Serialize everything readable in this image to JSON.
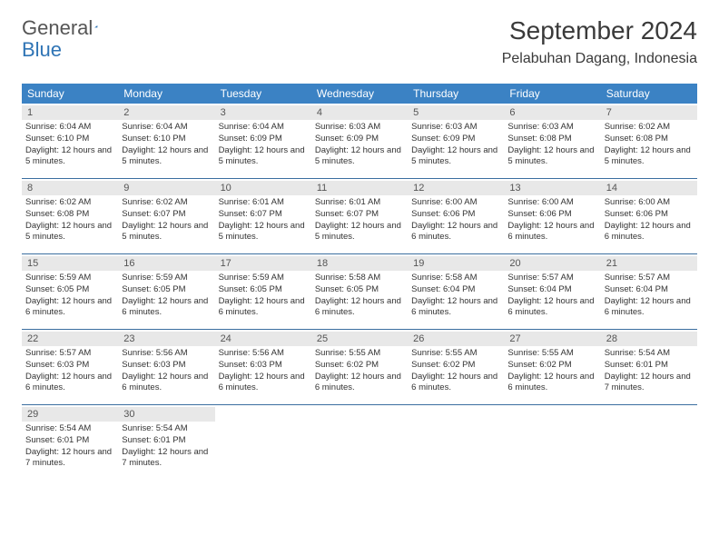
{
  "logo": {
    "part1": "General",
    "part2": "Blue"
  },
  "title": "September 2024",
  "location": "Pelabuhan Dagang, Indonesia",
  "colors": {
    "header_bg": "#3b82c4",
    "header_text": "#ffffff",
    "daynum_bg": "#e8e8e8",
    "week_border": "#3b6ea0",
    "logo_blue": "#2f74b5"
  },
  "day_names": [
    "Sunday",
    "Monday",
    "Tuesday",
    "Wednesday",
    "Thursday",
    "Friday",
    "Saturday"
  ],
  "weeks": [
    [
      {
        "n": "1",
        "sr": "6:04 AM",
        "ss": "6:10 PM",
        "dl": "12 hours and 5 minutes."
      },
      {
        "n": "2",
        "sr": "6:04 AM",
        "ss": "6:10 PM",
        "dl": "12 hours and 5 minutes."
      },
      {
        "n": "3",
        "sr": "6:04 AM",
        "ss": "6:09 PM",
        "dl": "12 hours and 5 minutes."
      },
      {
        "n": "4",
        "sr": "6:03 AM",
        "ss": "6:09 PM",
        "dl": "12 hours and 5 minutes."
      },
      {
        "n": "5",
        "sr": "6:03 AM",
        "ss": "6:09 PM",
        "dl": "12 hours and 5 minutes."
      },
      {
        "n": "6",
        "sr": "6:03 AM",
        "ss": "6:08 PM",
        "dl": "12 hours and 5 minutes."
      },
      {
        "n": "7",
        "sr": "6:02 AM",
        "ss": "6:08 PM",
        "dl": "12 hours and 5 minutes."
      }
    ],
    [
      {
        "n": "8",
        "sr": "6:02 AM",
        "ss": "6:08 PM",
        "dl": "12 hours and 5 minutes."
      },
      {
        "n": "9",
        "sr": "6:02 AM",
        "ss": "6:07 PM",
        "dl": "12 hours and 5 minutes."
      },
      {
        "n": "10",
        "sr": "6:01 AM",
        "ss": "6:07 PM",
        "dl": "12 hours and 5 minutes."
      },
      {
        "n": "11",
        "sr": "6:01 AM",
        "ss": "6:07 PM",
        "dl": "12 hours and 5 minutes."
      },
      {
        "n": "12",
        "sr": "6:00 AM",
        "ss": "6:06 PM",
        "dl": "12 hours and 6 minutes."
      },
      {
        "n": "13",
        "sr": "6:00 AM",
        "ss": "6:06 PM",
        "dl": "12 hours and 6 minutes."
      },
      {
        "n": "14",
        "sr": "6:00 AM",
        "ss": "6:06 PM",
        "dl": "12 hours and 6 minutes."
      }
    ],
    [
      {
        "n": "15",
        "sr": "5:59 AM",
        "ss": "6:05 PM",
        "dl": "12 hours and 6 minutes."
      },
      {
        "n": "16",
        "sr": "5:59 AM",
        "ss": "6:05 PM",
        "dl": "12 hours and 6 minutes."
      },
      {
        "n": "17",
        "sr": "5:59 AM",
        "ss": "6:05 PM",
        "dl": "12 hours and 6 minutes."
      },
      {
        "n": "18",
        "sr": "5:58 AM",
        "ss": "6:05 PM",
        "dl": "12 hours and 6 minutes."
      },
      {
        "n": "19",
        "sr": "5:58 AM",
        "ss": "6:04 PM",
        "dl": "12 hours and 6 minutes."
      },
      {
        "n": "20",
        "sr": "5:57 AM",
        "ss": "6:04 PM",
        "dl": "12 hours and 6 minutes."
      },
      {
        "n": "21",
        "sr": "5:57 AM",
        "ss": "6:04 PM",
        "dl": "12 hours and 6 minutes."
      }
    ],
    [
      {
        "n": "22",
        "sr": "5:57 AM",
        "ss": "6:03 PM",
        "dl": "12 hours and 6 minutes."
      },
      {
        "n": "23",
        "sr": "5:56 AM",
        "ss": "6:03 PM",
        "dl": "12 hours and 6 minutes."
      },
      {
        "n": "24",
        "sr": "5:56 AM",
        "ss": "6:03 PM",
        "dl": "12 hours and 6 minutes."
      },
      {
        "n": "25",
        "sr": "5:55 AM",
        "ss": "6:02 PM",
        "dl": "12 hours and 6 minutes."
      },
      {
        "n": "26",
        "sr": "5:55 AM",
        "ss": "6:02 PM",
        "dl": "12 hours and 6 minutes."
      },
      {
        "n": "27",
        "sr": "5:55 AM",
        "ss": "6:02 PM",
        "dl": "12 hours and 6 minutes."
      },
      {
        "n": "28",
        "sr": "5:54 AM",
        "ss": "6:01 PM",
        "dl": "12 hours and 7 minutes."
      }
    ],
    [
      {
        "n": "29",
        "sr": "5:54 AM",
        "ss": "6:01 PM",
        "dl": "12 hours and 7 minutes."
      },
      {
        "n": "30",
        "sr": "5:54 AM",
        "ss": "6:01 PM",
        "dl": "12 hours and 7 minutes."
      },
      null,
      null,
      null,
      null,
      null
    ]
  ],
  "labels": {
    "sunrise": "Sunrise:",
    "sunset": "Sunset:",
    "daylight": "Daylight:"
  }
}
